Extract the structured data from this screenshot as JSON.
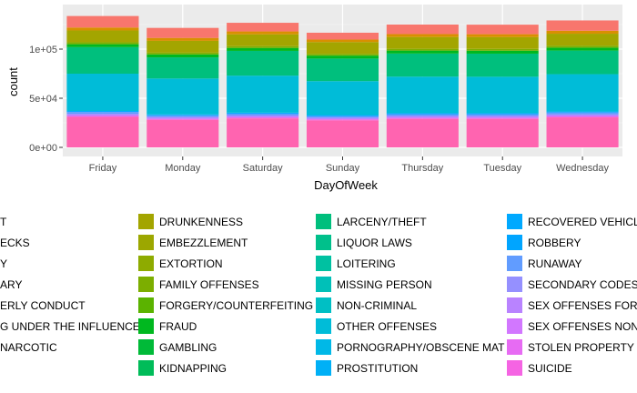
{
  "chart_data": {
    "type": "bar",
    "stacked": true,
    "xlabel": "DayOfWeek",
    "ylabel": "count",
    "grid": true,
    "legend_position": "bottom",
    "ylim": [
      0,
      140000
    ],
    "yticks": [
      0,
      50000,
      100000
    ],
    "ytick_labels": [
      "0e+00",
      "5e+04",
      "1e+05"
    ],
    "categories": [
      "Friday",
      "Monday",
      "Saturday",
      "Sunday",
      "Thursday",
      "Tuesday",
      "Wednesday"
    ],
    "totals": [
      133700,
      121600,
      126800,
      116700,
      125000,
      124900,
      129200
    ],
    "series": [
      {
        "name": "DRUNKENNESS",
        "color": "#A3A500"
      },
      {
        "name": "EMBEZZLEMENT",
        "color": "#9CA700"
      },
      {
        "name": "EXTORTION",
        "color": "#8EAB00"
      },
      {
        "name": "FAMILY OFFENSES",
        "color": "#7CAE00"
      },
      {
        "name": "FORGERY/COUNTERFEITING",
        "color": "#5BB300"
      },
      {
        "name": "FRAUD",
        "color": "#00B81F"
      },
      {
        "name": "GAMBLING",
        "color": "#00BA38"
      },
      {
        "name": "KIDNAPPING",
        "color": "#00BC59"
      },
      {
        "name": "LARCENY/THEFT",
        "color": "#00BF7D"
      },
      {
        "name": "LIQUOR LAWS",
        "color": "#00C08B"
      },
      {
        "name": "LOITERING",
        "color": "#00C1A1"
      },
      {
        "name": "MISSING PERSON",
        "color": "#00C0B8"
      },
      {
        "name": "NON-CRIMINAL",
        "color": "#00BFC4"
      },
      {
        "name": "OTHER OFFENSES",
        "color": "#00BCD8"
      },
      {
        "name": "PORNOGRAPHY/OBSCENE MAT",
        "color": "#00B8E7"
      },
      {
        "name": "PROSTITUTION",
        "color": "#00B0F6"
      },
      {
        "name": "RECOVERED VEHICLE",
        "color": "#00A9FF"
      },
      {
        "name": "ROBBERY",
        "color": "#00A5FF"
      },
      {
        "name": "RUNAWAY",
        "color": "#619CFF"
      },
      {
        "name": "SECONDARY CODES",
        "color": "#9590FF"
      },
      {
        "name": "SEX OFFENSES FORCIBLE",
        "color": "#B983FF"
      },
      {
        "name": "SEX OFFENSES NON FORCIBLE",
        "color": "#D277FF"
      },
      {
        "name": "STOLEN PROPERTY",
        "color": "#E76BF3"
      },
      {
        "name": "SUICIDE",
        "color": "#F564E3"
      }
    ],
    "legend_partial_left_column": [
      {
        "name": "T",
        "color": "#F8766D"
      },
      {
        "name": "ECKS",
        "color": "#F8766D"
      },
      {
        "name": "Y",
        "color": "#F8766D"
      },
      {
        "name": "ARY",
        "color": "#F8766D"
      },
      {
        "name": "ERLY CONDUCT",
        "color": "#F8766D"
      },
      {
        "name": "G UNDER THE INFLUENCE",
        "color": "#F8766D"
      },
      {
        "name": "NARCOTIC",
        "color": "#F8766D"
      }
    ],
    "bar_layers": [
      {
        "color": "#FF64B0",
        "values": [
          31000,
          28000,
          29500,
          27500,
          29000,
          29000,
          30500
        ]
      },
      {
        "color": "#F564E3",
        "values": [
          1000,
          1000,
          1000,
          1000,
          1000,
          1000,
          1000
        ]
      },
      {
        "color": "#B983FF",
        "values": [
          2000,
          1800,
          1900,
          1700,
          1900,
          1900,
          2000
        ]
      },
      {
        "color": "#619CFF",
        "values": [
          2000,
          1800,
          1900,
          1700,
          1900,
          1900,
          2000
        ]
      },
      {
        "color": "#00A9FF",
        "values": [
          1000,
          1000,
          1000,
          1000,
          1000,
          1000,
          1000
        ]
      },
      {
        "color": "#00BCD8",
        "values": [
          38000,
          36500,
          37700,
          34500,
          37200,
          37100,
          38000
        ]
      },
      {
        "color": "#00BF7D",
        "values": [
          27000,
          21500,
          25200,
          23000,
          23500,
          23500,
          24000
        ]
      },
      {
        "color": "#00B81F",
        "values": [
          3000,
          3000,
          3000,
          3000,
          3000,
          3000,
          3000
        ]
      },
      {
        "color": "#7CAE00",
        "values": [
          2000,
          1800,
          1800,
          1800,
          1800,
          1800,
          2000
        ]
      },
      {
        "color": "#A3A500",
        "values": [
          12000,
          12000,
          12000,
          12000,
          12000,
          12000,
          12200
        ]
      },
      {
        "color": "#D89000",
        "values": [
          3000,
          3000,
          3000,
          2500,
          3000,
          3000,
          3000
        ]
      },
      {
        "color": "#F8766D",
        "values": [
          11700,
          10200,
          8800,
          7000,
          9700,
          9700,
          10500
        ]
      }
    ]
  }
}
